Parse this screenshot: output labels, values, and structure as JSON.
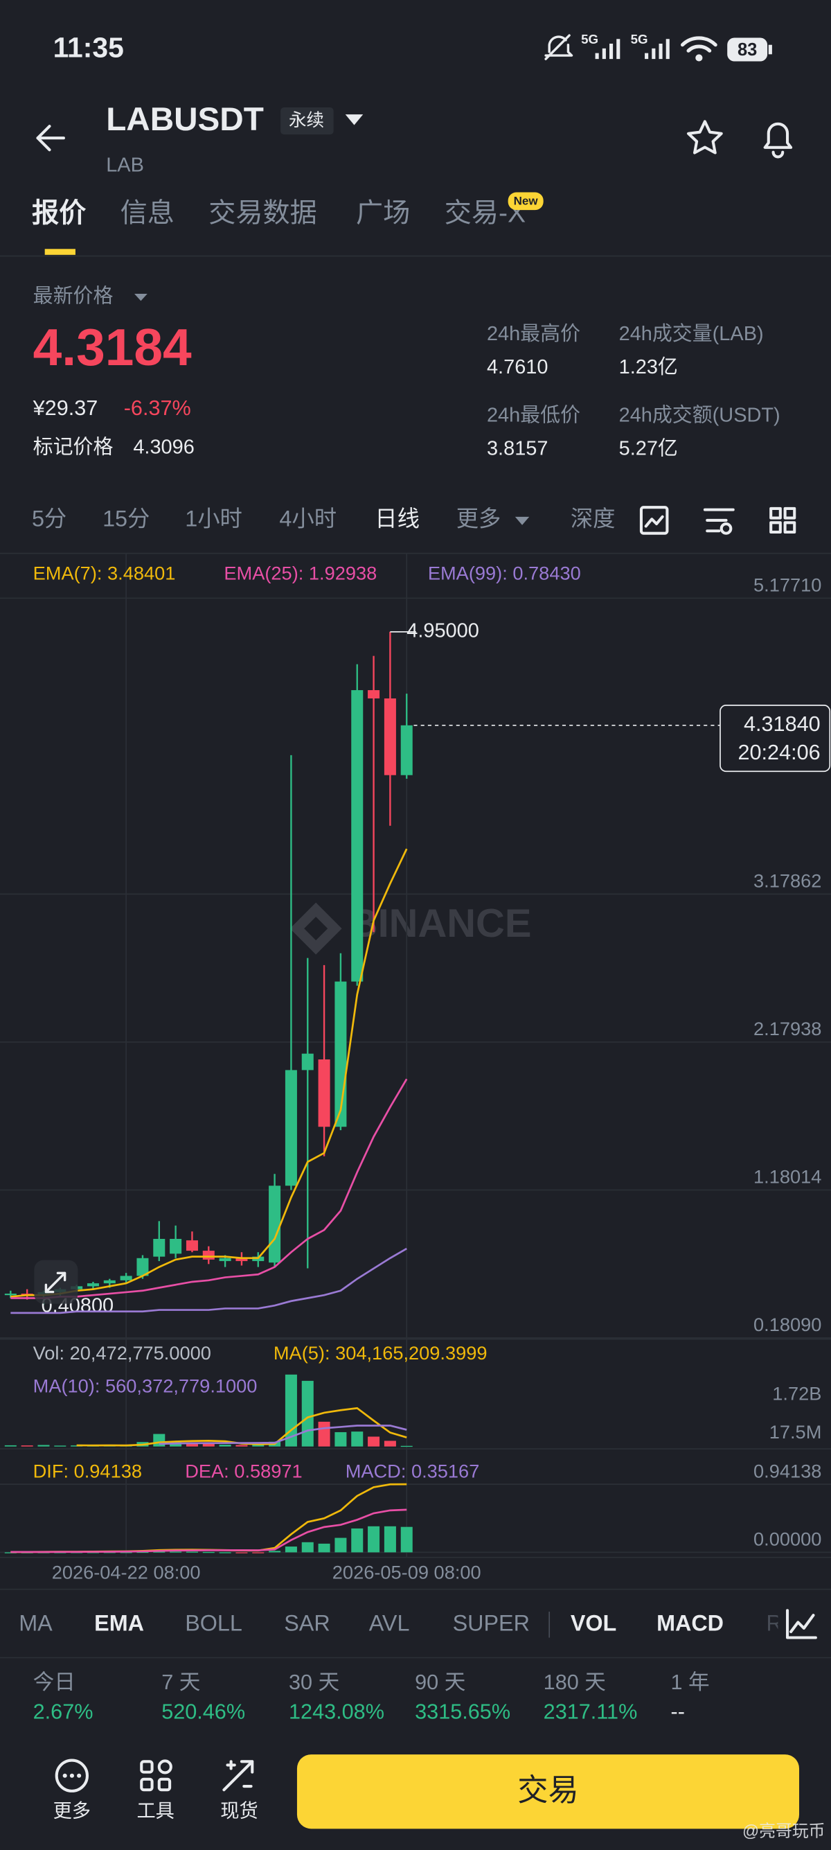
{
  "status_bar": {
    "time": "11:35",
    "network": [
      "5G",
      "5G"
    ],
    "battery": "83"
  },
  "header": {
    "symbol": "LABUSDT",
    "contract": "永续",
    "base": "LAB"
  },
  "tabs": [
    "报价",
    "信息",
    "交易数据",
    "广场",
    "交易-X"
  ],
  "new_badge": "New",
  "price": {
    "label": "最新价格",
    "last": "4.3184",
    "cny": "¥29.37",
    "change": "-6.37%",
    "mark_label": "标记价格",
    "mark": "4.3096"
  },
  "stats": [
    {
      "label": "24h最高价",
      "value": "4.7610"
    },
    {
      "label": "24h成交量(LAB)",
      "value": "1.23亿"
    },
    {
      "label": "24h最低价",
      "value": "3.8157"
    },
    {
      "label": "24h成交额(USDT)",
      "value": "5.27亿"
    }
  ],
  "intervals": [
    "5分",
    "15分",
    "1小时",
    "4小时",
    "日线",
    "更多",
    "深度"
  ],
  "chart_data": [
    {
      "type": "candlestick",
      "up_color": "#2ebd85",
      "down_color": "#f6465d",
      "grid": true,
      "categories": [
        null,
        null,
        null,
        null,
        null,
        null,
        null,
        "2026-04-22 08:00",
        null,
        null,
        null,
        null,
        null,
        null,
        null,
        null,
        null,
        null,
        null,
        null,
        null,
        null,
        null,
        null,
        "2026-05-09 08:00"
      ],
      "open": [
        0.47,
        0.48,
        0.47,
        0.49,
        0.51,
        0.53,
        0.55,
        0.57,
        0.6,
        0.73,
        0.75,
        0.84,
        0.77,
        0.7,
        0.72,
        0.7,
        0.69,
        1.209,
        1.99,
        2.062,
        1.607,
        2.588,
        4.556,
        4.5,
        3.982
      ],
      "high": [
        0.5,
        0.51,
        0.5,
        0.52,
        0.54,
        0.56,
        0.58,
        0.62,
        0.74,
        0.97,
        0.94,
        0.9,
        0.8,
        0.74,
        0.76,
        0.76,
        1.289,
        4.117,
        2.747,
        2.699,
        2.779,
        4.731,
        4.787,
        4.95,
        4.532
      ],
      "low": [
        0.45,
        0.44,
        0.408,
        0.46,
        0.49,
        0.51,
        0.52,
        0.55,
        0.58,
        0.7,
        0.72,
        0.76,
        0.68,
        0.66,
        0.67,
        0.66,
        0.66,
        1.18,
        0.651,
        1.408,
        1.584,
        2.56,
        2.922,
        3.64,
        3.958
      ],
      "close": [
        0.48,
        0.47,
        0.49,
        0.51,
        0.53,
        0.55,
        0.57,
        0.6,
        0.72,
        0.85,
        0.85,
        0.77,
        0.71,
        0.72,
        0.7,
        0.73,
        1.209,
        1.99,
        2.101,
        1.607,
        2.588,
        4.556,
        4.5,
        3.982,
        4.3184
      ],
      "series": [
        {
          "name": "EMA(7): 3.48401",
          "color": "#f0b90b",
          "kind": "line",
          "values": [
            0.46,
            0.47,
            0.47,
            0.48,
            0.5,
            0.51,
            0.53,
            0.55,
            0.6,
            0.66,
            0.71,
            0.73,
            0.73,
            0.73,
            0.72,
            0.72,
            0.85,
            1.13,
            1.37,
            1.43,
            1.72,
            2.5,
            3.0,
            3.25,
            3.48401
          ]
        },
        {
          "name": "EMA(25): 1.92938",
          "color": "#e84fa6",
          "kind": "line",
          "values": [
            0.45,
            0.45,
            0.45,
            0.46,
            0.46,
            0.47,
            0.48,
            0.49,
            0.5,
            0.52,
            0.54,
            0.56,
            0.57,
            0.59,
            0.6,
            0.61,
            0.66,
            0.76,
            0.85,
            0.91,
            1.04,
            1.3,
            1.54,
            1.74,
            1.92938
          ]
        },
        {
          "name": "EMA(99): 0.78430",
          "color": "#9a7ad4",
          "kind": "line",
          "values": [
            0.35,
            0.35,
            0.35,
            0.35,
            0.36,
            0.36,
            0.36,
            0.36,
            0.36,
            0.37,
            0.37,
            0.37,
            0.37,
            0.38,
            0.38,
            0.38,
            0.4,
            0.43,
            0.45,
            0.47,
            0.5,
            0.58,
            0.65,
            0.72,
            0.7843
          ]
        }
      ],
      "ylim": [
        0.1809,
        5.1771
      ],
      "yticks": [
        {
          "value": 0.1809,
          "label": "0.18090"
        },
        1.18014,
        2.17938,
        3.17862,
        {
          "value": 5.1771,
          "label": "5.17710"
        }
      ],
      "high_label": "4.95000",
      "low_label": "0.40800",
      "last_price_label": "4.31840",
      "countdown": "20:24:06"
    },
    {
      "type": "volume",
      "grid": false,
      "ylim": [
        0,
        3400000000
      ],
      "yticks": [
        {
          "value": 1720000000,
          "label": "1.72B"
        },
        {
          "value": 17500000,
          "label": "17.5M"
        }
      ],
      "series": [
        {
          "name": "Vol: 20,472,775.0000",
          "color": "#b7bdc6",
          "kind": "bar",
          "values": [
            40000000,
            35000000,
            50000000,
            30000000,
            35000000,
            30000000,
            40000000,
            45000000,
            150000000,
            420000000,
            180000000,
            120000000,
            90000000,
            60000000,
            50000000,
            55000000,
            160000000,
            2410000000,
            2200000000,
            830000000,
            480000000,
            500000000,
            330000000,
            190000000,
            20472775
          ]
        },
        {
          "name": "MA(5): 304,165,209.3999",
          "color": "#f0b90b",
          "kind": "line",
          "values": [
            null,
            null,
            null,
            null,
            38000000,
            36000000,
            37000000,
            36000000,
            60000000,
            137000000,
            167000000,
            183000000,
            192000000,
            174000000,
            100000000,
            75000000,
            83000000,
            547000000,
            975000000,
            1131000000,
            1216000000,
            1284000000,
            868000000,
            466000000,
            304165209.3999
          ]
        },
        {
          "name": "MA(10): 560,372,779.1000",
          "color": "#9a7ad4",
          "kind": "line",
          "values": [
            null,
            null,
            null,
            null,
            null,
            null,
            null,
            null,
            null,
            87000000,
            101000000,
            110000000,
            114000000,
            115000000,
            118000000,
            120000000,
            125000000,
            325000000,
            535000000,
            612000000,
            655000000,
            700000000,
            700000000,
            700000000,
            560372779.1
          ]
        }
      ]
    },
    {
      "type": "macd",
      "grid": true,
      "ylim": [
        -0.07,
        1.3
      ],
      "yticks": [
        {
          "value": 0,
          "label": "0.00000"
        },
        0.94138
      ],
      "series": [
        {
          "name": "DIF: 0.94138",
          "color": "#f0b90b",
          "kind": "line",
          "values": [
            0.005,
            0.005,
            0.006,
            0.007,
            0.008,
            0.01,
            0.012,
            0.014,
            0.02,
            0.03,
            0.035,
            0.036,
            0.034,
            0.03,
            0.027,
            0.025,
            0.06,
            0.25,
            0.42,
            0.47,
            0.58,
            0.78,
            0.9,
            0.94,
            0.94138
          ]
        },
        {
          "name": "DEA: 0.58971",
          "color": "#e84fa6",
          "kind": "line",
          "values": [
            0.005,
            0.005,
            0.005,
            0.006,
            0.006,
            0.008,
            0.009,
            0.011,
            0.014,
            0.02,
            0.025,
            0.027,
            0.029,
            0.029,
            0.029,
            0.028,
            0.04,
            0.17,
            0.28,
            0.35,
            0.38,
            0.45,
            0.54,
            0.58,
            0.58971
          ]
        },
        {
          "name": "MACD: 0.35167",
          "color": "#9a7ad4",
          "kind": "bar",
          "values": [
            0,
            0,
            0.001,
            0.001,
            0.002,
            0.002,
            0.003,
            0.003,
            0.006,
            0.01,
            0.01,
            0.009,
            0.005,
            0.001,
            -0.002,
            -0.003,
            0.02,
            0.08,
            0.14,
            0.12,
            0.2,
            0.33,
            0.36,
            0.36,
            0.35167
          ]
        }
      ]
    }
  ],
  "indicators": [
    "MA",
    "EMA",
    "BOLL",
    "SAR",
    "AVL",
    "SUPER",
    "VOL",
    "MACD",
    "R"
  ],
  "performance": [
    {
      "period": "今日",
      "value": "2.67%"
    },
    {
      "period": "7 天",
      "value": "520.46%"
    },
    {
      "period": "30 天",
      "value": "1243.08%"
    },
    {
      "period": "90 天",
      "value": "3315.65%"
    },
    {
      "period": "180 天",
      "value": "2317.11%"
    },
    {
      "period": "1 年",
      "value": "--"
    }
  ],
  "bottom_bar": {
    "buttons": [
      "更多",
      "工具",
      "现货"
    ],
    "trade": "交易"
  },
  "logo_watermark": "BINANCE",
  "watermark": "@亮哥玩币"
}
